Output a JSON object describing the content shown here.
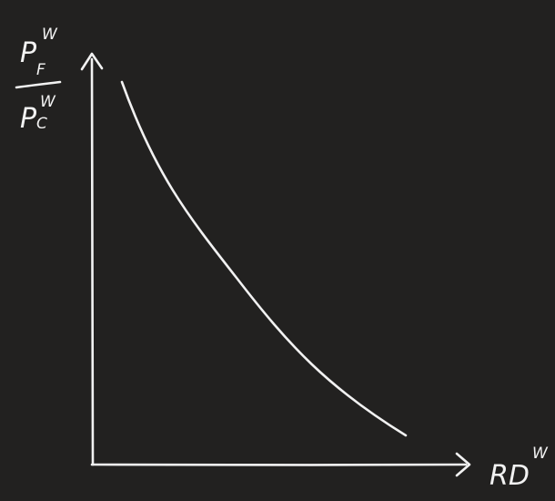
{
  "diagram": {
    "background_color": "#222120",
    "ink_color": "#f2f2f2",
    "y_axis_label": {
      "numerator": {
        "base": "P",
        "superscript": "W",
        "subscript": "F"
      },
      "denominator": {
        "base": "P",
        "superscript": "W",
        "subscript": "C"
      }
    },
    "x_axis_label": {
      "base": "RD",
      "superscript": "W"
    },
    "curve": {
      "shape": "downward-sloping convex"
    }
  }
}
